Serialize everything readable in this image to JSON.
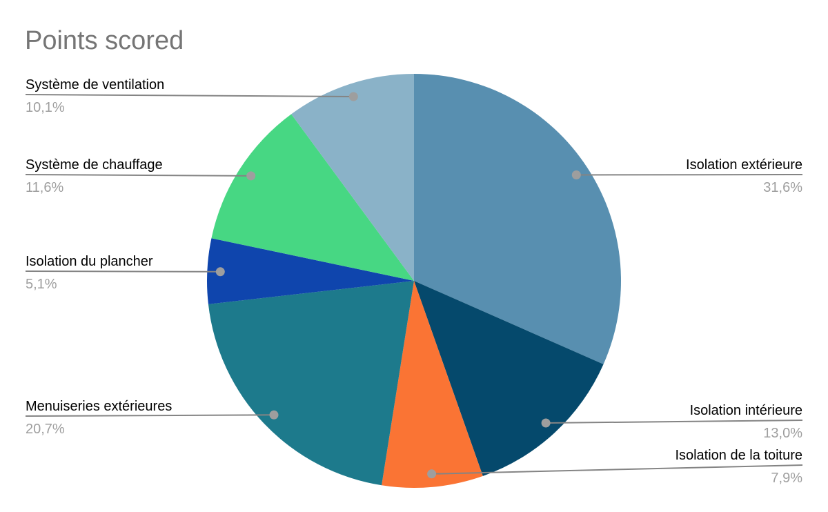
{
  "title": "Points scored",
  "colors": {
    "background": "#ffffff",
    "title_text": "#757575",
    "label_text": "#000000",
    "value_text": "#9e9e9e",
    "leader_line": "#848484",
    "leader_dot": "#9e9e9e"
  },
  "chart_data": {
    "type": "pie",
    "title": "Points scored",
    "start_angle_deg": 0,
    "direction": "clockwise",
    "legend_position": "labeled-callouts",
    "slices": [
      {
        "label": "Isolation extérieure",
        "value_pct": 31.6,
        "display_value": "31,6%",
        "color": "#588fb0"
      },
      {
        "label": "Isolation intérieure",
        "value_pct": 13.0,
        "display_value": "13,0%",
        "color": "#05496c"
      },
      {
        "label": "Isolation de la toiture",
        "value_pct": 7.9,
        "display_value": "7,9%",
        "color": "#fa7434"
      },
      {
        "label": "Menuiseries extérieures",
        "value_pct": 20.7,
        "display_value": "20,7%",
        "color": "#1d7a8c"
      },
      {
        "label": "Isolation du plancher",
        "value_pct": 5.1,
        "display_value": "5,1%",
        "color": "#0f45ad"
      },
      {
        "label": "Système de chauffage",
        "value_pct": 11.6,
        "display_value": "11,6%",
        "color": "#47d783"
      },
      {
        "label": "Système de ventilation",
        "value_pct": 10.1,
        "display_value": "10,1%",
        "color": "#8ab2c8"
      }
    ]
  }
}
